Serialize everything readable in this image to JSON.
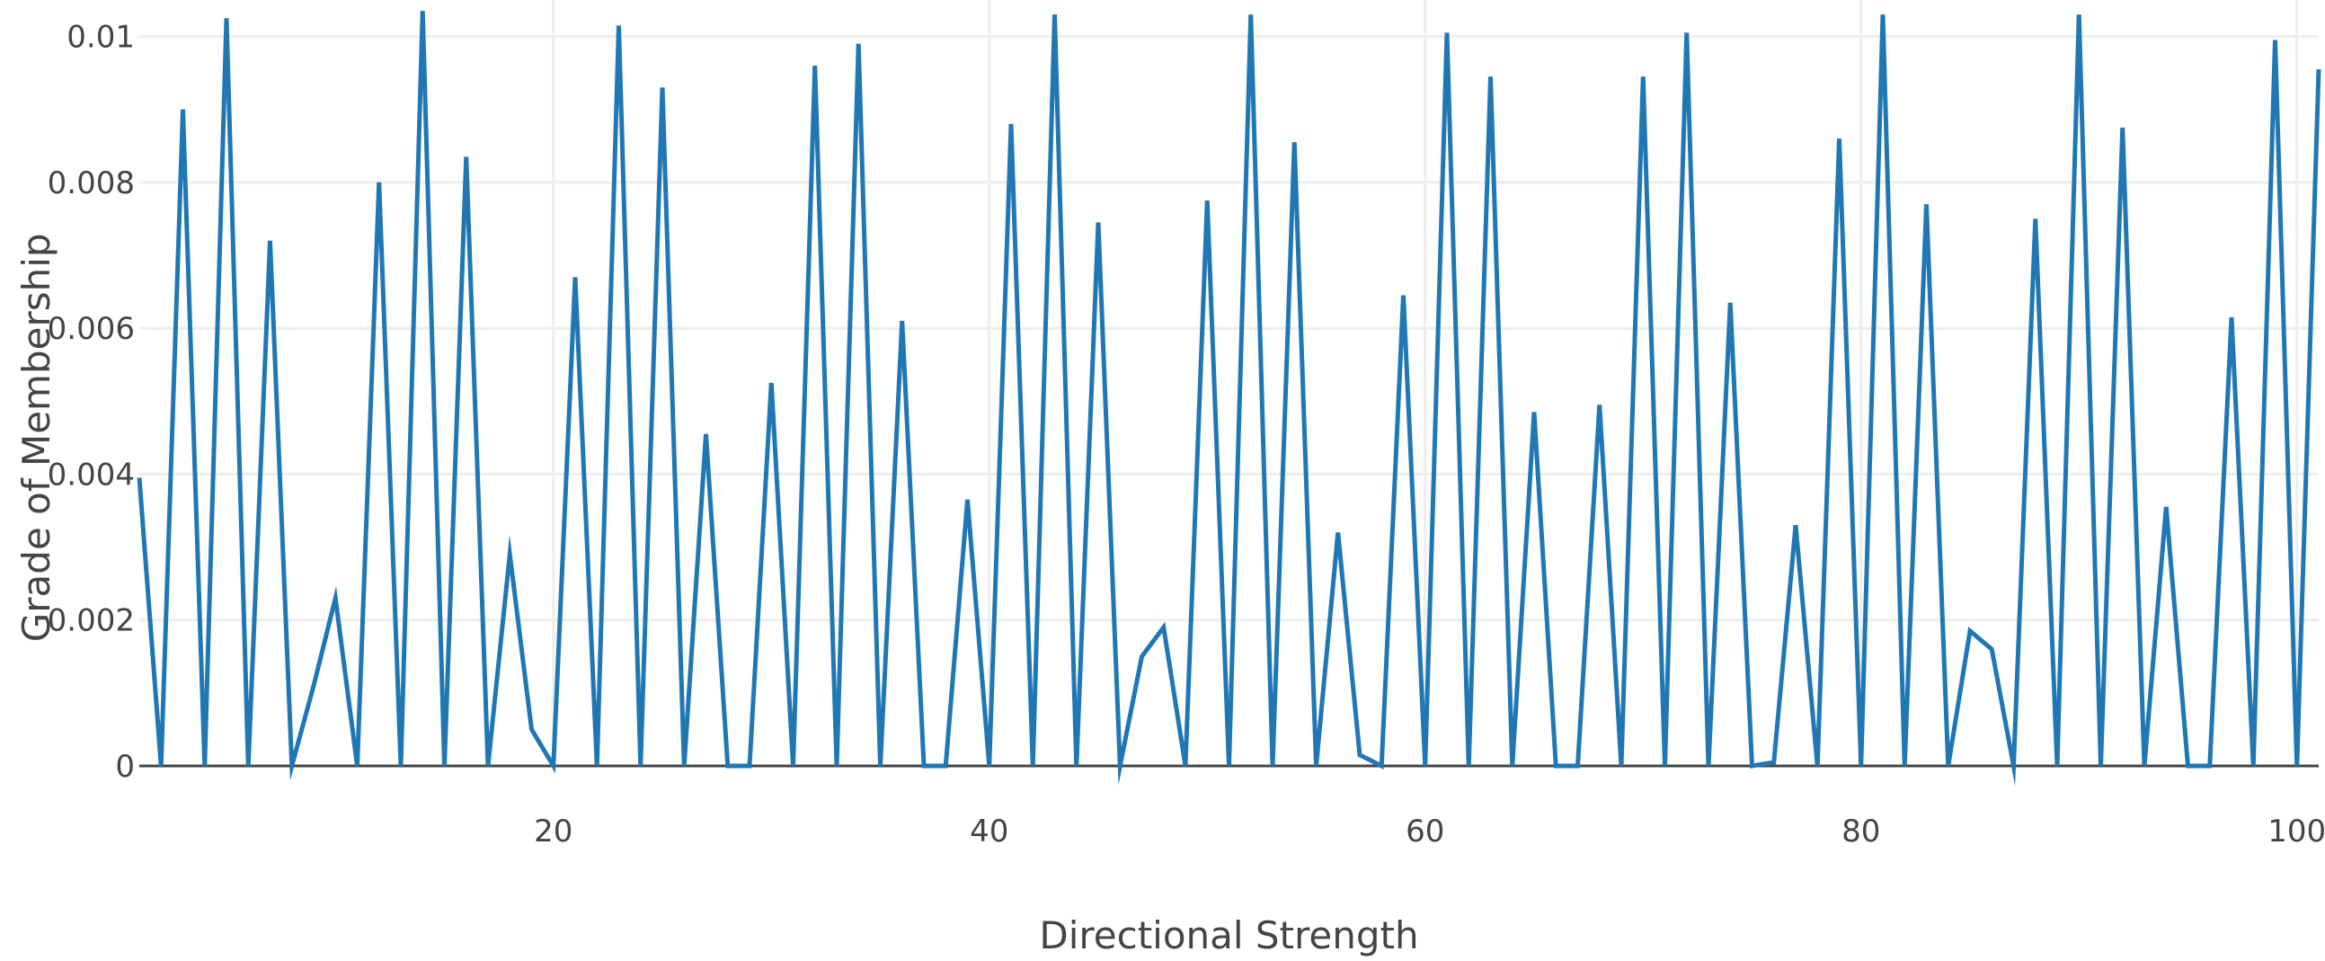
{
  "chart_data": {
    "type": "line",
    "title": "",
    "xlabel": "Directional Strength",
    "ylabel": "Grade of Membership",
    "xlim": [
      1,
      101
    ],
    "ylim": [
      0,
      0.0105
    ],
    "xticks": [
      20,
      40,
      60,
      80,
      100
    ],
    "xtick_labels": [
      "20",
      "40",
      "60",
      "80",
      "100"
    ],
    "yticks": [
      0,
      0.002,
      0.004,
      0.006,
      0.008,
      0.01
    ],
    "ytick_labels": [
      "0",
      "0.002",
      "0.004",
      "0.006",
      "0.008",
      "0.01"
    ],
    "grid": true,
    "legend": "none",
    "colors": {
      "line": "#1f77b4",
      "grid": "#eeeeee",
      "axis": "#444444",
      "text": "#444444"
    },
    "series": [
      {
        "x": [
          1,
          2,
          3,
          4,
          5,
          6,
          7,
          8,
          9,
          10,
          11,
          12,
          13,
          14,
          15,
          16,
          17,
          18,
          19,
          20,
          21,
          22,
          23,
          24,
          25,
          26,
          27,
          28,
          29,
          30,
          31,
          32,
          33,
          34,
          35,
          36,
          37,
          38,
          39,
          40,
          41,
          42,
          43,
          44,
          45,
          46,
          47,
          48,
          49,
          50,
          51,
          52,
          53,
          54,
          55,
          56,
          57,
          58,
          59,
          60,
          61,
          62,
          63,
          64,
          65,
          66,
          67,
          68,
          69,
          70,
          71,
          72,
          73,
          74,
          75,
          76,
          77,
          78,
          79,
          80,
          81,
          82,
          83,
          84,
          85,
          86,
          87,
          88,
          89,
          90,
          91,
          92,
          93,
          94,
          95,
          96,
          97,
          98,
          99,
          100,
          101
        ],
        "y": [
          0.00395,
          0,
          0.009,
          0,
          0.01025,
          0,
          0.0072,
          0,
          0.0011,
          0.0023,
          0,
          0.008,
          0,
          0.01035,
          0,
          0.00835,
          0,
          0.0029,
          0.0005,
          0,
          0.0067,
          0,
          0.01015,
          0,
          0.0093,
          0,
          0.00455,
          0,
          0,
          0.00525,
          0,
          0.0096,
          0,
          0.0099,
          0,
          0.0061,
          0,
          0,
          0.00365,
          0,
          0.0088,
          0,
          0.0103,
          0,
          0.00745,
          0,
          0.0015,
          0.0019,
          0,
          0.00775,
          0,
          0.0103,
          0,
          0.00855,
          0,
          0.0032,
          0.00015,
          0,
          0.00645,
          0,
          0.01005,
          0,
          0.00945,
          0,
          0.00485,
          0,
          0,
          0.00495,
          0,
          0.00945,
          0,
          0.01005,
          0,
          0.00635,
          0,
          5e-05,
          0.0033,
          0,
          0.0086,
          0,
          0.0103,
          0,
          0.0077,
          0,
          0.00185,
          0.0016,
          0,
          0.0075,
          0,
          0.0103,
          0,
          0.00875,
          0,
          0.00355,
          0,
          0,
          0.00615,
          0,
          0.00995,
          0,
          0.00955
        ]
      }
    ]
  }
}
